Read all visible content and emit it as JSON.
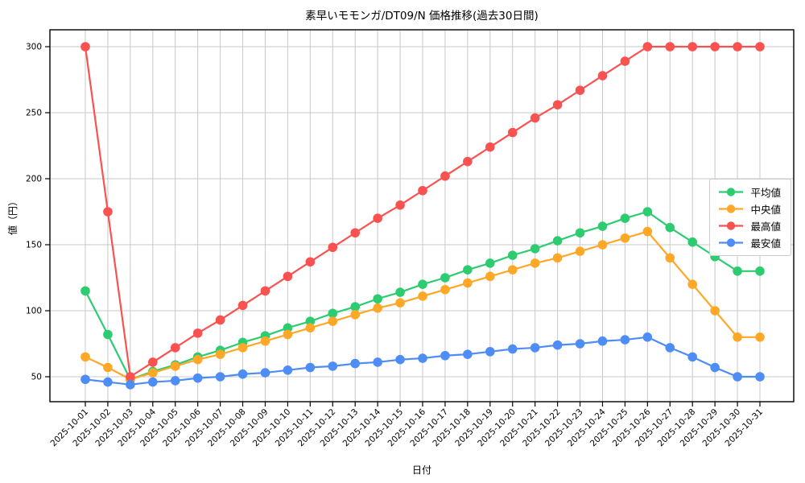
{
  "title": "素早いモモンガ/DT09/N 価格推移(過去30日間)",
  "axes": {
    "x_label": "日付",
    "y_label": "値（円）",
    "y_ticks": [
      50,
      100,
      150,
      200,
      250,
      300
    ]
  },
  "legend": {
    "position": "center-right",
    "items": [
      "平均値",
      "中央値",
      "最高値",
      "最安値"
    ]
  },
  "colors": {
    "grid": "#c8c8c8",
    "axis": "#000000",
    "background": "#ffffff",
    "average": "#2ecc71",
    "median": "#ffa726",
    "max": "#fa5151",
    "min": "#4e8df5"
  },
  "chart_data": {
    "type": "line",
    "title": "素早いモモンガ/DT09/N 価格推移(過去30日間)",
    "xlabel": "日付",
    "ylabel": "値（円）",
    "ylim": [
      31,
      313
    ],
    "grid": true,
    "legend_position": "center-right",
    "x": [
      "2025-10-01",
      "2025-10-02",
      "2025-10-03",
      "2025-10-04",
      "2025-10-05",
      "2025-10-06",
      "2025-10-07",
      "2025-10-08",
      "2025-10-09",
      "2025-10-10",
      "2025-10-11",
      "2025-10-12",
      "2025-10-13",
      "2025-10-14",
      "2025-10-15",
      "2025-10-16",
      "2025-10-17",
      "2025-10-18",
      "2025-10-19",
      "2025-10-20",
      "2025-10-21",
      "2025-10-22",
      "2025-10-23",
      "2025-10-24",
      "2025-10-25",
      "2025-10-26",
      "2025-10-27",
      "2025-10-28",
      "2025-10-29",
      "2025-10-30",
      "2025-10-31"
    ],
    "series": [
      {
        "name": "平均値",
        "color": "#2ecc71",
        "values": [
          115,
          82,
          48,
          54,
          59,
          65,
          70,
          76,
          81,
          87,
          92,
          98,
          103,
          109,
          114,
          120,
          125,
          131,
          136,
          142,
          147,
          153,
          159,
          164,
          170,
          175,
          163,
          152,
          141,
          130,
          130
        ]
      },
      {
        "name": "中央値",
        "color": "#ffa726",
        "values": [
          65,
          57,
          48,
          53,
          58,
          63,
          67,
          72,
          77,
          82,
          87,
          92,
          97,
          102,
          106,
          111,
          116,
          121,
          126,
          131,
          136,
          140,
          145,
          150,
          155,
          160,
          140,
          120,
          100,
          80,
          80
        ]
      },
      {
        "name": "最高値",
        "color": "#fa5151",
        "values": [
          300,
          175,
          50,
          61,
          72,
          83,
          93,
          104,
          115,
          126,
          137,
          148,
          159,
          170,
          180,
          191,
          202,
          213,
          224,
          235,
          246,
          256,
          267,
          278,
          289,
          300,
          300,
          300,
          300,
          300,
          300
        ]
      },
      {
        "name": "最安値",
        "color": "#4e8df5",
        "values": [
          48,
          46,
          44,
          46,
          47,
          49,
          50,
          52,
          53,
          55,
          57,
          58,
          60,
          61,
          63,
          64,
          66,
          67,
          69,
          71,
          72,
          74,
          75,
          77,
          78,
          80,
          72,
          65,
          57,
          50,
          50
        ]
      }
    ]
  }
}
